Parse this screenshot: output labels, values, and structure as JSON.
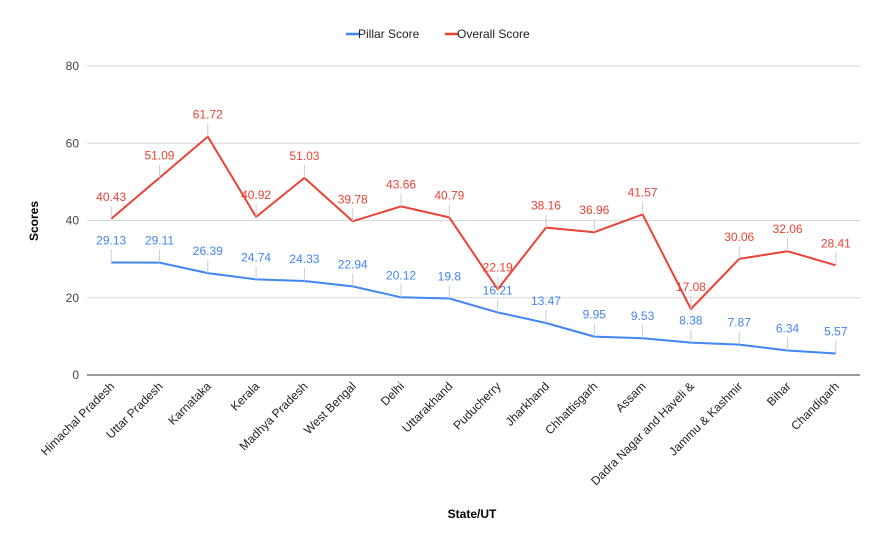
{
  "chart_data": {
    "type": "line",
    "title": "",
    "xlabel": "State/UT",
    "ylabel": "Scores",
    "ylim": [
      0,
      80
    ],
    "yticks": [
      0,
      20,
      40,
      60,
      80
    ],
    "grid": true,
    "legend_position": "top",
    "categories": [
      "Himachal Pradesh",
      "Uttar Pradesh",
      "Karnataka",
      "Kerala",
      "Madhya Pradesh",
      "West Bengal",
      "Delhi",
      "Uttarakhand",
      "Puducherry",
      "Jharkhand",
      "Chhattisgarh",
      "Assam",
      "Dadra Nagar and Haveli &",
      "Jammu & Kashmir",
      "Bihar",
      "Chandigarh"
    ],
    "series": [
      {
        "name": "Pillar Score",
        "color": "#4285f4",
        "values": [
          29.13,
          29.11,
          26.39,
          24.74,
          24.33,
          22.94,
          20.12,
          19.8,
          16.21,
          13.47,
          9.95,
          9.53,
          8.38,
          7.87,
          6.34,
          5.57
        ]
      },
      {
        "name": "Overall Score",
        "color": "#ea4335",
        "values": [
          40.43,
          51.09,
          61.72,
          40.92,
          51.03,
          39.78,
          43.66,
          40.79,
          22.19,
          38.16,
          36.96,
          41.57,
          17.08,
          30.06,
          32.06,
          28.41
        ]
      }
    ]
  }
}
